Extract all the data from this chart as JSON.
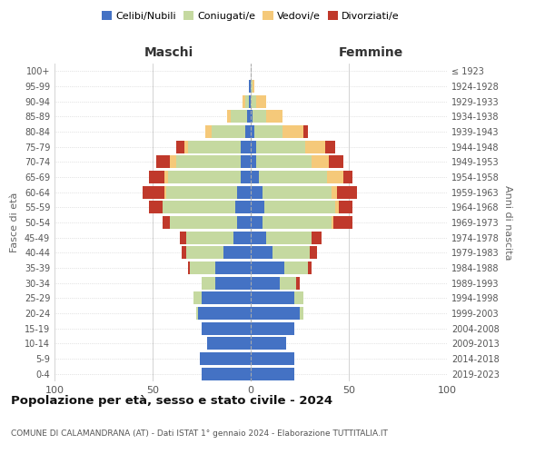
{
  "age_groups": [
    "0-4",
    "5-9",
    "10-14",
    "15-19",
    "20-24",
    "25-29",
    "30-34",
    "35-39",
    "40-44",
    "45-49",
    "50-54",
    "55-59",
    "60-64",
    "65-69",
    "70-74",
    "75-79",
    "80-84",
    "85-89",
    "90-94",
    "95-99",
    "100+"
  ],
  "birth_years": [
    "2019-2023",
    "2014-2018",
    "2009-2013",
    "2004-2008",
    "1999-2003",
    "1994-1998",
    "1989-1993",
    "1984-1988",
    "1979-1983",
    "1974-1978",
    "1969-1973",
    "1964-1968",
    "1959-1963",
    "1954-1958",
    "1949-1953",
    "1944-1948",
    "1939-1943",
    "1934-1938",
    "1929-1933",
    "1924-1928",
    "≤ 1923"
  ],
  "maschi": {
    "celibi": [
      25,
      26,
      22,
      25,
      27,
      25,
      18,
      18,
      14,
      9,
      7,
      8,
      7,
      5,
      5,
      5,
      3,
      2,
      1,
      1,
      0
    ],
    "coniugati": [
      0,
      0,
      0,
      0,
      1,
      4,
      7,
      13,
      19,
      24,
      34,
      37,
      36,
      37,
      33,
      27,
      17,
      8,
      2,
      0,
      0
    ],
    "vedovi": [
      0,
      0,
      0,
      0,
      0,
      0,
      0,
      0,
      0,
      0,
      0,
      0,
      1,
      2,
      3,
      2,
      3,
      2,
      1,
      0,
      0
    ],
    "divorziati": [
      0,
      0,
      0,
      0,
      0,
      0,
      0,
      1,
      2,
      3,
      4,
      7,
      11,
      8,
      7,
      4,
      0,
      0,
      0,
      0,
      0
    ]
  },
  "femmine": {
    "nubili": [
      22,
      22,
      18,
      22,
      25,
      22,
      15,
      17,
      11,
      8,
      6,
      7,
      6,
      4,
      3,
      3,
      2,
      1,
      0,
      0,
      0
    ],
    "coniugate": [
      0,
      0,
      0,
      0,
      2,
      5,
      8,
      12,
      19,
      23,
      35,
      36,
      35,
      35,
      28,
      25,
      14,
      7,
      3,
      1,
      0
    ],
    "vedove": [
      0,
      0,
      0,
      0,
      0,
      0,
      0,
      0,
      0,
      0,
      1,
      2,
      3,
      8,
      9,
      10,
      11,
      8,
      5,
      1,
      0
    ],
    "divorziate": [
      0,
      0,
      0,
      0,
      0,
      0,
      2,
      2,
      4,
      5,
      10,
      7,
      10,
      5,
      7,
      5,
      2,
      0,
      0,
      0,
      0
    ]
  },
  "colors": {
    "celibe": "#4472c4",
    "coniugato": "#c5d9a0",
    "vedovo": "#f5c97a",
    "divorziato": "#c0392b"
  },
  "title": "Popolazione per età, sesso e stato civile - 2024",
  "subtitle": "COMUNE DI CALAMANDRANA (AT) - Dati ISTAT 1° gennaio 2024 - Elaborazione TUTTITALIA.IT",
  "xlabel_left": "Maschi",
  "xlabel_right": "Femmine",
  "ylabel_left": "Fasce di età",
  "ylabel_right": "Anni di nascita",
  "xlim": 100,
  "background_color": "#ffffff",
  "grid_color": "#cccccc"
}
